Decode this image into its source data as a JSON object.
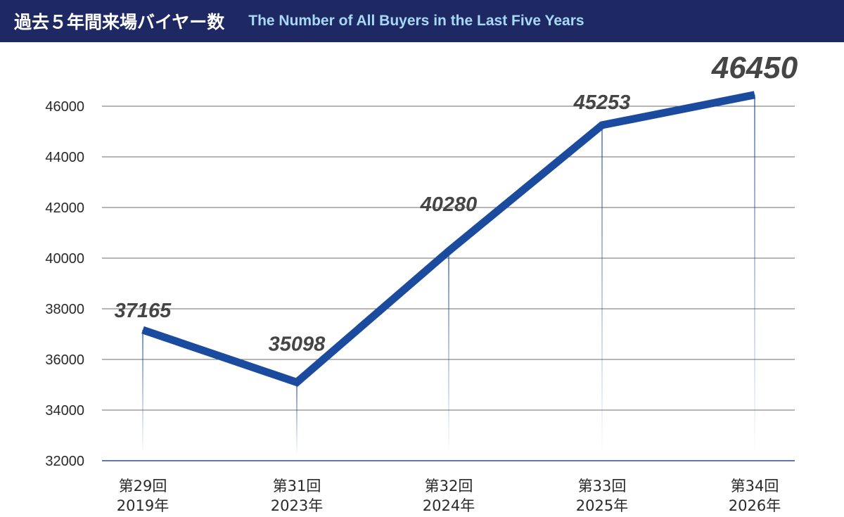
{
  "header": {
    "title_ja": "過去５年間来場バイヤー数",
    "title_en": "The Number of All Buyers in the Last Five Years"
  },
  "colors": {
    "header_bg": "#1e2963",
    "title_en": "#a7d8f5",
    "line": "#1b4b9e",
    "highlight_label": "#1b4b9e",
    "data_label": "#454545"
  },
  "chart_data": {
    "type": "line",
    "title": "過去５年間来場バイヤー数",
    "subtitle": "The Number of All Buyers in the Last Five Years",
    "categories": [
      [
        "第29回",
        "2019年"
      ],
      [
        "第31回",
        "2023年"
      ],
      [
        "第32回",
        "2024年"
      ],
      [
        "第33回",
        "2025年"
      ],
      [
        "第34回",
        "2026年"
      ]
    ],
    "series": [
      {
        "values": [
          37165,
          35098,
          40280,
          45253,
          46450
        ]
      }
    ],
    "data_labels": [
      "37165",
      "35098",
      "40280",
      "45253",
      "46450"
    ],
    "highlight_index": 4,
    "ylim": [
      32000,
      46000
    ],
    "yticks": [
      32000,
      34000,
      36000,
      38000,
      40000,
      42000,
      44000,
      46000
    ],
    "ytick_labels": [
      "32000",
      "34000",
      "36000",
      "38000",
      "40000",
      "42000",
      "44000",
      "46000"
    ],
    "grid": true,
    "legend": "none"
  }
}
